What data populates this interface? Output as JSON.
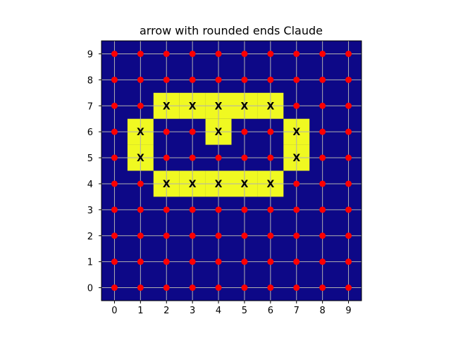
{
  "chart_data": {
    "type": "heatmap",
    "title": "arrow with rounded ends Claude",
    "xlabel": "",
    "ylabel": "",
    "x_ticks": [
      "0",
      "1",
      "2",
      "3",
      "4",
      "5",
      "6",
      "7",
      "8",
      "9"
    ],
    "y_ticks": [
      "0",
      "1",
      "2",
      "3",
      "4",
      "5",
      "6",
      "7",
      "8",
      "9"
    ],
    "xlim": [
      -0.5,
      9.5
    ],
    "ylim": [
      -0.5,
      9.5
    ],
    "grid": true,
    "colors": {
      "background": "#0d0887",
      "filled": "#f0f921",
      "point": "#ff0000",
      "grid": "#b0b0b0"
    },
    "filled_cells": [
      [
        2,
        7
      ],
      [
        3,
        7
      ],
      [
        4,
        7
      ],
      [
        5,
        7
      ],
      [
        6,
        7
      ],
      [
        1,
        6
      ],
      [
        4,
        6
      ],
      [
        7,
        6
      ],
      [
        1,
        5
      ],
      [
        7,
        5
      ],
      [
        2,
        4
      ],
      [
        3,
        4
      ],
      [
        4,
        4
      ],
      [
        5,
        4
      ],
      [
        6,
        4
      ]
    ],
    "x_markers": [
      [
        2,
        7
      ],
      [
        3,
        7
      ],
      [
        4,
        7
      ],
      [
        5,
        7
      ],
      [
        6,
        7
      ],
      [
        1,
        6
      ],
      [
        4,
        6
      ],
      [
        7,
        6
      ],
      [
        1,
        5
      ],
      [
        7,
        5
      ],
      [
        2,
        4
      ],
      [
        3,
        4
      ],
      [
        4,
        4
      ],
      [
        5,
        4
      ],
      [
        6,
        4
      ]
    ],
    "marker_label": "X",
    "dot_grid": {
      "x_range": [
        0,
        9
      ],
      "y_range": [
        0,
        9
      ]
    }
  }
}
